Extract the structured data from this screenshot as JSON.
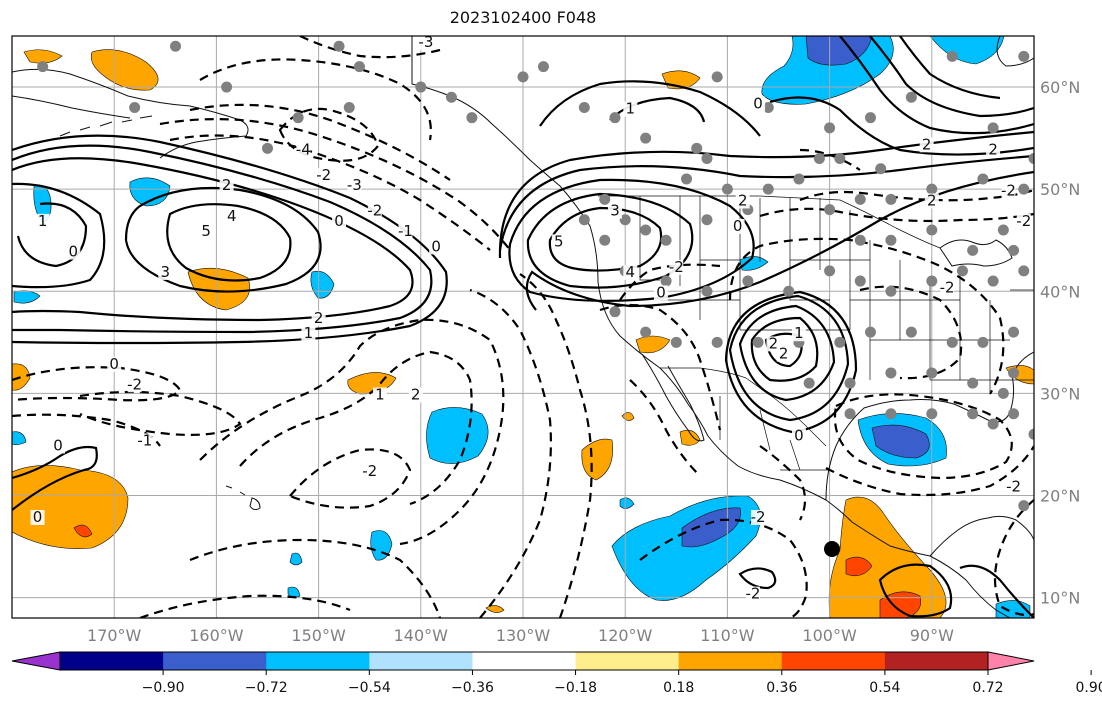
{
  "title": "2023102400 F048",
  "colors": {
    "ocean": "#ffffff",
    "grid": "#aaaaaa",
    "coast": "#111111",
    "contour": "#000000",
    "station": "#808080"
  },
  "map": {
    "lon_range": [
      -180,
      -80
    ],
    "lat_range": [
      8,
      65
    ],
    "lon_ticks": [
      {
        "value": -170,
        "label": "170°W"
      },
      {
        "value": -160,
        "label": "160°W"
      },
      {
        "value": -150,
        "label": "150°W"
      },
      {
        "value": -140,
        "label": "140°W"
      },
      {
        "value": -130,
        "label": "130°W"
      },
      {
        "value": -120,
        "label": "120°W"
      },
      {
        "value": -110,
        "label": "110°W"
      },
      {
        "value": -100,
        "label": "100°W"
      },
      {
        "value": -90,
        "label": "90°W"
      }
    ],
    "lat_ticks": [
      {
        "value": 60,
        "label": "60°N"
      },
      {
        "value": 50,
        "label": "50°N"
      },
      {
        "value": 40,
        "label": "40°N"
      },
      {
        "value": 30,
        "label": "30°N"
      },
      {
        "value": 20,
        "label": "20°N"
      },
      {
        "value": 10,
        "label": "10°N"
      }
    ]
  },
  "colorbar": {
    "colors": [
      "#9a32cd",
      "#00008b",
      "#3a5fcd",
      "#00bfff",
      "#b0e2ff",
      "#ffffff",
      "#ffec8b",
      "#ffa500",
      "#ff4500",
      "#b22222",
      "#ff82ab"
    ],
    "labels": [
      "−0.90",
      "−0.72",
      "−0.54",
      "−0.36",
      "−0.18",
      "0.18",
      "0.36",
      "0.54",
      "0.72",
      "0.90"
    ]
  },
  "contour_labels": [
    {
      "text": "-3",
      "lon": -139.5,
      "lat": 64
    },
    {
      "text": "-4",
      "lon": -151.5,
      "lat": 53.5
    },
    {
      "text": "-2",
      "lon": -149.5,
      "lat": 51
    },
    {
      "text": "-3",
      "lon": -146.5,
      "lat": 50
    },
    {
      "text": "-2",
      "lon": -144.5,
      "lat": 47.5
    },
    {
      "text": "0",
      "lon": -148,
      "lat": 46.5
    },
    {
      "text": "-1",
      "lon": -141.5,
      "lat": 45.5
    },
    {
      "text": "0",
      "lon": -138.5,
      "lat": 44
    },
    {
      "text": "2",
      "lon": -159,
      "lat": 50
    },
    {
      "text": "4",
      "lon": -158.5,
      "lat": 47
    },
    {
      "text": "5",
      "lon": -161,
      "lat": 45.5
    },
    {
      "text": "3",
      "lon": -165,
      "lat": 41.5
    },
    {
      "text": "2",
      "lon": -150,
      "lat": 37
    },
    {
      "text": "1",
      "lon": -151,
      "lat": 35.5
    },
    {
      "text": "0",
      "lon": -174,
      "lat": 43.5
    },
    {
      "text": "1",
      "lon": -177,
      "lat": 46.5
    },
    {
      "text": "0",
      "lon": -170,
      "lat": 32.5
    },
    {
      "text": "-2",
      "lon": -168,
      "lat": 30.5
    },
    {
      "text": "0",
      "lon": -175.5,
      "lat": 24.5
    },
    {
      "text": "-1",
      "lon": -167,
      "lat": 25
    },
    {
      "text": "0",
      "lon": -177.5,
      "lat": 17.5
    },
    {
      "text": "1",
      "lon": -144,
      "lat": 29.5
    },
    {
      "text": "2",
      "lon": -140.5,
      "lat": 29.5
    },
    {
      "text": "-2",
      "lon": -145,
      "lat": 22
    },
    {
      "text": "5",
      "lon": -126.5,
      "lat": 44.5
    },
    {
      "text": "3",
      "lon": -121,
      "lat": 47.5
    },
    {
      "text": "4",
      "lon": -119.5,
      "lat": 41.5
    },
    {
      "text": "1",
      "lon": -119.5,
      "lat": 57.5
    },
    {
      "text": "0",
      "lon": -107,
      "lat": 58
    },
    {
      "text": "2",
      "lon": -90.5,
      "lat": 54
    },
    {
      "text": "2",
      "lon": -84,
      "lat": 53.5
    },
    {
      "text": "2",
      "lon": -90,
      "lat": 48.5
    },
    {
      "text": "-2",
      "lon": -82.5,
      "lat": 49.5
    },
    {
      "text": "-2",
      "lon": -81,
      "lat": 46.5
    },
    {
      "text": "2",
      "lon": -108.5,
      "lat": 48.5
    },
    {
      "text": "0",
      "lon": -109,
      "lat": 46
    },
    {
      "text": "-2",
      "lon": -115,
      "lat": 42
    },
    {
      "text": "0",
      "lon": -116.5,
      "lat": 39.5
    },
    {
      "text": "1",
      "lon": -103,
      "lat": 35.5
    },
    {
      "text": "2",
      "lon": -105.5,
      "lat": 34.5
    },
    {
      "text": "2",
      "lon": -104.5,
      "lat": 33.5
    },
    {
      "text": "0",
      "lon": -103,
      "lat": 25.5
    },
    {
      "text": "-2",
      "lon": -88.5,
      "lat": 40
    },
    {
      "text": "-2",
      "lon": -107,
      "lat": 17.5
    },
    {
      "text": "-2",
      "lon": -82,
      "lat": 20.5
    },
    {
      "text": "-2",
      "lon": -107.5,
      "lat": 10
    }
  ]
}
